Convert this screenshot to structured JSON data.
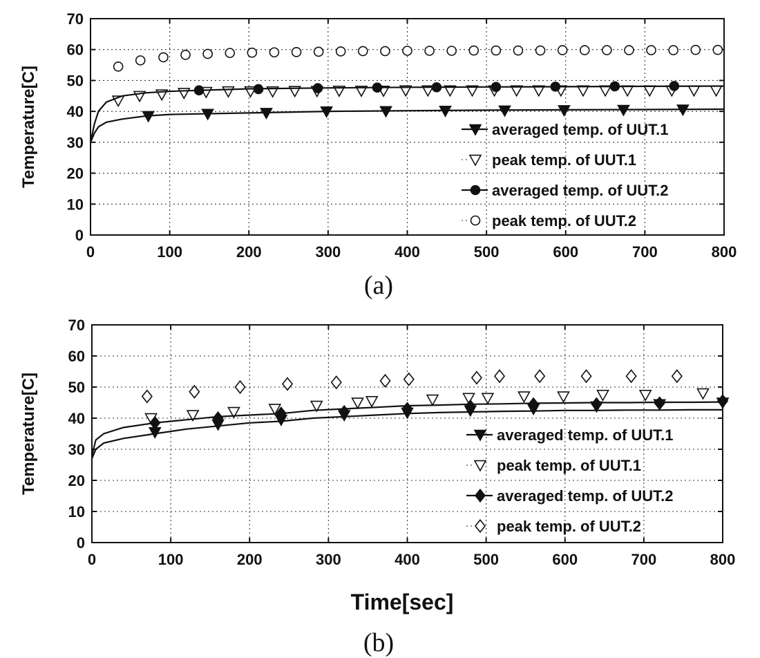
{
  "figure": {
    "panels": [
      {
        "caption": "(a)"
      },
      {
        "caption": "(b)",
        "xlabel": "Time[sec]"
      }
    ]
  },
  "chart_data": [
    {
      "type": "line",
      "panel": "(a)",
      "xlabel": "",
      "ylabel": "Temperature[C]",
      "xlim": [
        0,
        800
      ],
      "ylim": [
        0,
        70
      ],
      "xticks": [
        0,
        100,
        200,
        300,
        400,
        500,
        600,
        700,
        800
      ],
      "yticks": [
        0,
        10,
        20,
        30,
        40,
        50,
        60,
        70
      ],
      "grid": "dotted",
      "legend_position": "right",
      "series": [
        {
          "name": "averaged temp. of UUT.1",
          "marker": "triangle-down-filled",
          "color": "#111111",
          "line": [
            [
              0,
              30
            ],
            [
              5,
              33
            ],
            [
              10,
              35
            ],
            [
              20,
              36.5
            ],
            [
              40,
              37.5
            ],
            [
              70,
              38.5
            ],
            [
              100,
              39
            ],
            [
              200,
              39.5
            ],
            [
              300,
              40
            ],
            [
              400,
              40.2
            ],
            [
              500,
              40.4
            ],
            [
              600,
              40.5
            ],
            [
              700,
              40.6
            ],
            [
              800,
              40.7
            ]
          ],
          "markers": [
            [
              73,
              38.5
            ],
            [
              148,
              39.2
            ],
            [
              222,
              39.5
            ],
            [
              298,
              40
            ],
            [
              373,
              40.1
            ],
            [
              448,
              40.2
            ],
            [
              523,
              40.3
            ],
            [
              598,
              40.4
            ],
            [
              673,
              40.5
            ],
            [
              748,
              40.6
            ]
          ]
        },
        {
          "name": "peak temp. of UUT.1",
          "marker": "triangle-down-open",
          "color": "#111111",
          "markers": [
            [
              35,
              43.5
            ],
            [
              62,
              45
            ],
            [
              90,
              45.5
            ],
            [
              118,
              46
            ],
            [
              146,
              46.3
            ],
            [
              174,
              46.5
            ],
            [
              202,
              46.5
            ],
            [
              230,
              46.5
            ],
            [
              258,
              46.6
            ],
            [
              286,
              46.6
            ],
            [
              314,
              46.7
            ],
            [
              342,
              46.7
            ],
            [
              370,
              46.7
            ],
            [
              398,
              46.8
            ],
            [
              426,
              46.8
            ],
            [
              454,
              46.8
            ],
            [
              482,
              46.8
            ],
            [
              510,
              46.8
            ],
            [
              538,
              46.8
            ],
            [
              566,
              46.8
            ],
            [
              594,
              46.8
            ],
            [
              622,
              46.8
            ],
            [
              650,
              46.8
            ],
            [
              678,
              46.8
            ],
            [
              706,
              46.8
            ],
            [
              734,
              46.8
            ],
            [
              762,
              46.8
            ],
            [
              790,
              46.8
            ]
          ]
        },
        {
          "name": "averaged temp. of UUT.2",
          "marker": "circle-filled",
          "color": "#111111",
          "line": [
            [
              0,
              30
            ],
            [
              5,
              36
            ],
            [
              10,
              40
            ],
            [
              20,
              43
            ],
            [
              40,
              45
            ],
            [
              70,
              46
            ],
            [
              100,
              46.5
            ],
            [
              200,
              47.3
            ],
            [
              300,
              47.6
            ],
            [
              400,
              47.8
            ],
            [
              500,
              47.9
            ],
            [
              600,
              48
            ],
            [
              700,
              48.1
            ],
            [
              800,
              48.2
            ]
          ],
          "markers": [
            [
              137,
              46.8
            ],
            [
              212,
              47.2
            ],
            [
              287,
              47.5
            ],
            [
              362,
              47.7
            ],
            [
              437,
              47.8
            ],
            [
              512,
              47.9
            ],
            [
              587,
              48
            ],
            [
              662,
              48.1
            ],
            [
              737,
              48.2
            ]
          ]
        },
        {
          "name": "peak temp. of UUT.2",
          "marker": "circle-open",
          "color": "#111111",
          "markers": [
            [
              35,
              54.5
            ],
            [
              63,
              56.5
            ],
            [
              92,
              57.5
            ],
            [
              120,
              58.3
            ],
            [
              148,
              58.6
            ],
            [
              176,
              58.9
            ],
            [
              204,
              59
            ],
            [
              232,
              59.1
            ],
            [
              260,
              59.2
            ],
            [
              288,
              59.3
            ],
            [
              316,
              59.4
            ],
            [
              344,
              59.5
            ],
            [
              372,
              59.5
            ],
            [
              400,
              59.6
            ],
            [
              428,
              59.6
            ],
            [
              456,
              59.6
            ],
            [
              484,
              59.7
            ],
            [
              512,
              59.7
            ],
            [
              540,
              59.7
            ],
            [
              568,
              59.7
            ],
            [
              596,
              59.8
            ],
            [
              624,
              59.8
            ],
            [
              652,
              59.8
            ],
            [
              680,
              59.8
            ],
            [
              708,
              59.8
            ],
            [
              736,
              59.8
            ],
            [
              764,
              59.9
            ],
            [
              792,
              59.9
            ]
          ]
        }
      ]
    },
    {
      "type": "line",
      "panel": "(b)",
      "xlabel": "Time[sec]",
      "ylabel": "Temperature[C]",
      "xlim": [
        0,
        800
      ],
      "ylim": [
        0,
        70
      ],
      "xticks": [
        0,
        100,
        200,
        300,
        400,
        500,
        600,
        700,
        800
      ],
      "yticks": [
        0,
        10,
        20,
        30,
        40,
        50,
        60,
        70
      ],
      "grid": "dotted",
      "legend_position": "right",
      "series": [
        {
          "name": "averaged temp. of UUT.1",
          "marker": "triangle-down-filled",
          "color": "#111111",
          "line": [
            [
              0,
              27
            ],
            [
              5,
              30
            ],
            [
              15,
              32
            ],
            [
              40,
              33.5
            ],
            [
              80,
              35
            ],
            [
              120,
              36.5
            ],
            [
              160,
              37.5
            ],
            [
              200,
              38.5
            ],
            [
              240,
              39
            ],
            [
              280,
              40
            ],
            [
              320,
              40.5
            ],
            [
              360,
              41
            ],
            [
              400,
              41.5
            ],
            [
              440,
              41.8
            ],
            [
              480,
              42
            ],
            [
              520,
              42.2
            ],
            [
              560,
              42.3
            ],
            [
              600,
              42.5
            ],
            [
              640,
              42.5
            ],
            [
              680,
              42.6
            ],
            [
              720,
              42.6
            ],
            [
              760,
              42.7
            ],
            [
              800,
              42.7
            ]
          ],
          "markers": [
            [
              80,
              35.5
            ],
            [
              160,
              38
            ],
            [
              240,
              39.5
            ],
            [
              320,
              41
            ],
            [
              400,
              41.8
            ],
            [
              480,
              42.5
            ],
            [
              560,
              43
            ],
            [
              640,
              43.8
            ],
            [
              720,
              44.5
            ],
            [
              800,
              45
            ]
          ]
        },
        {
          "name": "peak temp. of UUT.1",
          "marker": "triangle-down-open",
          "color": "#111111",
          "markers": [
            [
              75,
              40
            ],
            [
              128,
              41
            ],
            [
              180,
              42
            ],
            [
              232,
              43
            ],
            [
              285,
              44
            ],
            [
              337,
              45
            ],
            [
              355,
              45.5
            ],
            [
              432,
              46
            ],
            [
              478,
              46.5
            ],
            [
              502,
              46.5
            ],
            [
              548,
              47
            ],
            [
              598,
              47
            ],
            [
              648,
              47.5
            ],
            [
              702,
              47.5
            ],
            [
              775,
              48
            ]
          ]
        },
        {
          "name": "averaged temp. of UUT.2",
          "marker": "diamond-filled",
          "color": "#111111",
          "line": [
            [
              0,
              28
            ],
            [
              5,
              33
            ],
            [
              15,
              35
            ],
            [
              40,
              37
            ],
            [
              80,
              38.5
            ],
            [
              120,
              39.5
            ],
            [
              160,
              40.5
            ],
            [
              200,
              41
            ],
            [
              240,
              41.5
            ],
            [
              280,
              42.5
            ],
            [
              320,
              43
            ],
            [
              360,
              43.5
            ],
            [
              400,
              44
            ],
            [
              440,
              44.2
            ],
            [
              480,
              44.5
            ],
            [
              520,
              44.6
            ],
            [
              560,
              44.8
            ],
            [
              600,
              44.9
            ],
            [
              640,
              45
            ],
            [
              680,
              45
            ],
            [
              720,
              45.1
            ],
            [
              760,
              45.1
            ],
            [
              800,
              45.2
            ]
          ],
          "markers": [
            [
              80,
              38.5
            ],
            [
              160,
              40
            ],
            [
              240,
              41.5
            ],
            [
              320,
              42
            ],
            [
              400,
              43
            ],
            [
              480,
              43.8
            ],
            [
              560,
              44.5
            ],
            [
              640,
              44.5
            ],
            [
              720,
              44.8
            ],
            [
              800,
              45.5
            ]
          ]
        },
        {
          "name": "peak temp. of UUT.2",
          "marker": "diamond-open",
          "color": "#111111",
          "markers": [
            [
              70,
              47
            ],
            [
              130,
              48.5
            ],
            [
              188,
              50
            ],
            [
              248,
              51
            ],
            [
              310,
              51.5
            ],
            [
              372,
              52
            ],
            [
              402,
              52.5
            ],
            [
              488,
              53
            ],
            [
              517,
              53.5
            ],
            [
              568,
              53.5
            ],
            [
              627,
              53.5
            ],
            [
              684,
              53.5
            ],
            [
              742,
              53.5
            ]
          ]
        }
      ]
    }
  ]
}
